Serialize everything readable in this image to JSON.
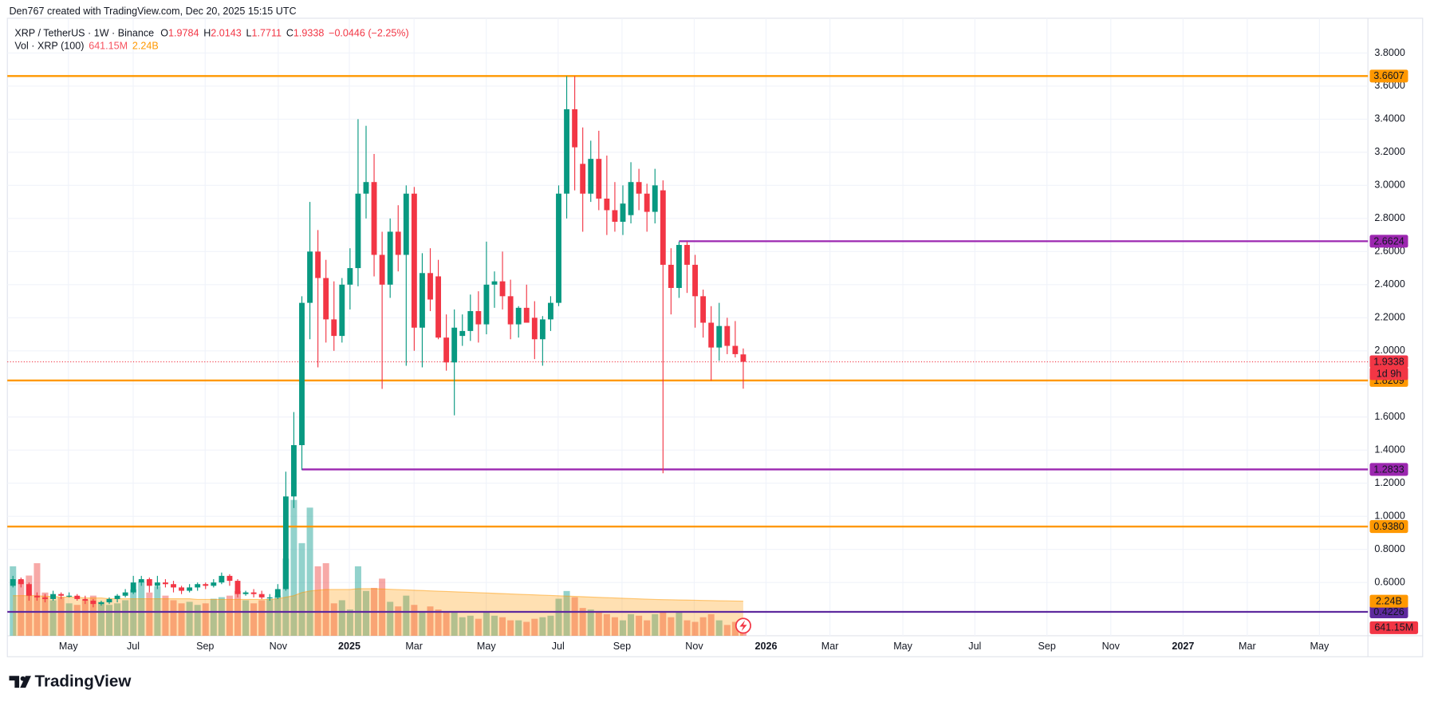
{
  "header": {
    "credit": "Den767 created with TradingView.com, Dec 20, 2025 15:15 UTC"
  },
  "legend": {
    "symbol": "XRP / TetherUS · 1W · Binance",
    "ohlc": [
      {
        "letter": "O",
        "value": 1.9784
      },
      {
        "letter": "H",
        "value": 2.0143
      },
      {
        "letter": "L",
        "value": 1.7711
      },
      {
        "letter": "C",
        "value": 1.9338
      }
    ],
    "change": "−0.0446 (−2.25%)"
  },
  "footer": {
    "brand": "TradingView"
  },
  "chart_data": {
    "type": "candlestick",
    "up_color": "#089981",
    "down_color": "#f23645",
    "grid": true,
    "xlim": [
      -0.7,
      168.84
    ],
    "xticks": [
      {
        "value": 6.91,
        "label": "May"
      },
      {
        "value": 14.98,
        "label": "Jul"
      },
      {
        "value": 23.95,
        "label": "Sep"
      },
      {
        "value": 33.05,
        "label": "Nov"
      },
      {
        "value": 41.91,
        "label": "2025"
      },
      {
        "value": 49.98,
        "label": "Mar"
      },
      {
        "value": 58.98,
        "label": "May"
      },
      {
        "value": 67.93,
        "label": "Jul"
      },
      {
        "value": 75.89,
        "label": "Sep"
      },
      {
        "value": 84.89,
        "label": "Nov"
      },
      {
        "value": 93.84,
        "label": "2026"
      },
      {
        "value": 101.8,
        "label": "Mar"
      },
      {
        "value": 110.89,
        "label": "May"
      },
      {
        "value": 119.86,
        "label": "Jul"
      },
      {
        "value": 128.84,
        "label": "Sep"
      },
      {
        "value": 136.8,
        "label": "Nov"
      },
      {
        "value": 145.8,
        "label": "2027"
      },
      {
        "value": 153.8,
        "label": "Mar"
      },
      {
        "value": 162.8,
        "label": "May"
      }
    ],
    "ylim": [
      0.278,
      4.01
    ],
    "yticks": [
      {
        "value": 0.6,
        "label": "0.6000"
      },
      {
        "value": 0.8,
        "label": "0.8000"
      },
      {
        "value": 1.0,
        "label": "1.0000"
      },
      {
        "value": 1.2,
        "label": "1.2000"
      },
      {
        "value": 1.4,
        "label": "1.4000"
      },
      {
        "value": 1.6,
        "label": "1.6000"
      },
      {
        "value": 1.8,
        "label": "1.8000"
      },
      {
        "value": 2.0,
        "label": "2.0000"
      },
      {
        "value": 2.2,
        "label": "2.2000"
      },
      {
        "value": 2.4,
        "label": "2.4000"
      },
      {
        "value": 2.6,
        "label": "2.6000"
      },
      {
        "value": 2.8,
        "label": "2.8000"
      },
      {
        "value": 3.0,
        "label": "3.0000"
      },
      {
        "value": 3.2,
        "label": "3.2000"
      },
      {
        "value": 3.4,
        "label": "3.4000"
      },
      {
        "value": 3.6,
        "label": "3.6000"
      },
      {
        "value": 3.8,
        "label": "3.8000"
      }
    ],
    "ohlc": [
      [
        0.58,
        0.64,
        0.57,
        0.62
      ],
      [
        0.62,
        0.63,
        0.57,
        0.59
      ],
      [
        0.59,
        0.6,
        0.49,
        0.52
      ],
      [
        0.52,
        0.54,
        0.49,
        0.51
      ],
      [
        0.51,
        0.53,
        0.48,
        0.5
      ],
      [
        0.5,
        0.55,
        0.49,
        0.53
      ],
      [
        0.53,
        0.54,
        0.5,
        0.52
      ],
      [
        0.52,
        0.54,
        0.51,
        0.52
      ],
      [
        0.52,
        0.53,
        0.49,
        0.5
      ],
      [
        0.5,
        0.52,
        0.47,
        0.49
      ],
      [
        0.49,
        0.5,
        0.45,
        0.47
      ],
      [
        0.47,
        0.49,
        0.46,
        0.48
      ],
      [
        0.48,
        0.51,
        0.47,
        0.5
      ],
      [
        0.5,
        0.53,
        0.48,
        0.52
      ],
      [
        0.52,
        0.56,
        0.51,
        0.54
      ],
      [
        0.54,
        0.64,
        0.53,
        0.6
      ],
      [
        0.6,
        0.64,
        0.58,
        0.62
      ],
      [
        0.62,
        0.63,
        0.54,
        0.58
      ],
      [
        0.58,
        0.64,
        0.56,
        0.6
      ],
      [
        0.6,
        0.62,
        0.57,
        0.59
      ],
      [
        0.59,
        0.61,
        0.54,
        0.57
      ],
      [
        0.57,
        0.58,
        0.53,
        0.55
      ],
      [
        0.55,
        0.59,
        0.54,
        0.57
      ],
      [
        0.57,
        0.6,
        0.55,
        0.59
      ],
      [
        0.59,
        0.6,
        0.56,
        0.58
      ],
      [
        0.58,
        0.62,
        0.57,
        0.6
      ],
      [
        0.6,
        0.66,
        0.59,
        0.64
      ],
      [
        0.64,
        0.65,
        0.58,
        0.61
      ],
      [
        0.61,
        0.62,
        0.51,
        0.53
      ],
      [
        0.53,
        0.55,
        0.52,
        0.54
      ],
      [
        0.54,
        0.56,
        0.51,
        0.53
      ],
      [
        0.53,
        0.55,
        0.5,
        0.51
      ],
      [
        0.51,
        0.53,
        0.49,
        0.51
      ],
      [
        0.51,
        0.59,
        0.5,
        0.56
      ],
      [
        0.56,
        1.27,
        0.55,
        1.12
      ],
      [
        1.12,
        1.63,
        1.05,
        1.43
      ],
      [
        1.43,
        2.33,
        1.28,
        2.29
      ],
      [
        2.29,
        2.9,
        2.07,
        2.6
      ],
      [
        2.6,
        2.73,
        1.9,
        2.44
      ],
      [
        2.44,
        2.55,
        2.05,
        2.19
      ],
      [
        2.19,
        2.42,
        2.0,
        2.09
      ],
      [
        2.09,
        2.44,
        2.05,
        2.4
      ],
      [
        2.4,
        2.62,
        2.25,
        2.5
      ],
      [
        2.5,
        3.4,
        2.39,
        2.95
      ],
      [
        2.95,
        3.36,
        2.8,
        3.02
      ],
      [
        3.02,
        3.19,
        2.45,
        2.58
      ],
      [
        2.58,
        2.72,
        1.77,
        2.4
      ],
      [
        2.4,
        2.8,
        2.32,
        2.72
      ],
      [
        2.72,
        2.88,
        2.48,
        2.58
      ],
      [
        2.58,
        3.0,
        1.91,
        2.95
      ],
      [
        2.95,
        2.99,
        2.0,
        2.14
      ],
      [
        2.14,
        2.59,
        1.9,
        2.47
      ],
      [
        2.47,
        2.62,
        2.24,
        2.31
      ],
      [
        2.45,
        2.55,
        2.07,
        2.08
      ],
      [
        2.08,
        2.22,
        1.88,
        1.93
      ],
      [
        1.93,
        2.25,
        1.61,
        2.14
      ],
      [
        2.09,
        2.22,
        2.03,
        2.12
      ],
      [
        2.12,
        2.34,
        2.06,
        2.24
      ],
      [
        2.24,
        2.36,
        2.05,
        2.16
      ],
      [
        2.16,
        2.66,
        2.1,
        2.4
      ],
      [
        2.4,
        2.48,
        2.26,
        2.42
      ],
      [
        2.42,
        2.6,
        2.25,
        2.33
      ],
      [
        2.33,
        2.43,
        2.07,
        2.16
      ],
      [
        2.16,
        2.27,
        2.08,
        2.26
      ],
      [
        2.26,
        2.4,
        2.17,
        2.17
      ],
      [
        2.2,
        2.3,
        1.95,
        2.07
      ],
      [
        2.07,
        2.21,
        1.91,
        2.19
      ],
      [
        2.19,
        2.33,
        2.12,
        2.29
      ],
      [
        2.29,
        3.0,
        2.27,
        2.95
      ],
      [
        2.95,
        3.66,
        2.8,
        3.46
      ],
      [
        3.46,
        3.66,
        2.97,
        3.23
      ],
      [
        3.13,
        3.35,
        2.72,
        2.95
      ],
      [
        2.95,
        3.27,
        2.9,
        3.16
      ],
      [
        3.16,
        3.33,
        2.85,
        2.92
      ],
      [
        2.92,
        3.18,
        2.7,
        2.85
      ],
      [
        2.85,
        3.02,
        2.72,
        2.78
      ],
      [
        2.78,
        3.0,
        2.7,
        2.89
      ],
      [
        2.82,
        3.14,
        2.77,
        3.02
      ],
      [
        3.02,
        3.1,
        2.85,
        2.95
      ],
      [
        2.95,
        3.01,
        2.72,
        2.84
      ],
      [
        2.84,
        3.1,
        2.77,
        3.0
      ],
      [
        2.97,
        3.03,
        1.26,
        2.52
      ],
      [
        2.52,
        2.62,
        2.22,
        2.38
      ],
      [
        2.38,
        2.66,
        2.32,
        2.64
      ],
      [
        2.64,
        2.66,
        2.35,
        2.52
      ],
      [
        2.52,
        2.58,
        2.14,
        2.33
      ],
      [
        2.33,
        2.37,
        2.08,
        2.17
      ],
      [
        2.17,
        2.27,
        1.82,
        2.02
      ],
      [
        2.02,
        2.29,
        1.94,
        2.15
      ],
      [
        2.15,
        2.2,
        1.98,
        2.03
      ],
      [
        2.03,
        2.18,
        1.96,
        1.98
      ],
      [
        1.9784,
        2.0143,
        1.7711,
        1.9338
      ]
    ],
    "volume": {
      "label": "Vol · XRP (100)",
      "ylim": [
        0,
        40000
      ],
      "up_color": "rgba(38,166,154,0.5)",
      "down_color": "rgba(239,83,80,0.5)",
      "values": [
        4500,
        3600,
        3900,
        4700,
        2800,
        2300,
        2500,
        2100,
        2000,
        2300,
        2600,
        2200,
        2000,
        2100,
        2300,
        3000,
        3500,
        2800,
        3200,
        2600,
        2300,
        2100,
        2200,
        2000,
        2100,
        2400,
        2500,
        2600,
        2900,
        2300,
        2100,
        2300,
        2400,
        2600,
        5000,
        8800,
        6000,
        8300,
        4500,
        4700,
        2100,
        2300,
        1700,
        4500,
        2900,
        3100,
        3700,
        2200,
        1900,
        2600,
        2000,
        1600,
        1900,
        1700,
        1500,
        1600,
        1200,
        1300,
        1100,
        1500,
        1300,
        1200,
        1000,
        1000,
        900,
        1100,
        1200,
        1300,
        2400,
        2900,
        2500,
        1800,
        1700,
        1500,
        1400,
        1200,
        1000,
        1400,
        1300,
        1000,
        1400,
        1600,
        1200,
        1500,
        1000,
        900,
        1200,
        1400,
        1000,
        700,
        900,
        641.15
      ],
      "last_label": "641.15M",
      "last_color": "#f23645",
      "ma": {
        "color": "#ff9800",
        "last_label": "2.24B",
        "values": [
          2600,
          2600,
          2600,
          2600,
          2550,
          2550,
          2500,
          2500,
          2500,
          2450,
          2450,
          2450,
          2400,
          2400,
          2400,
          2400,
          2400,
          2400,
          2400,
          2400,
          2400,
          2400,
          2400,
          2350,
          2350,
          2350,
          2350,
          2350,
          2350,
          2350,
          2350,
          2350,
          2350,
          2400,
          2500,
          2600,
          2800,
          2900,
          2950,
          3000,
          3000,
          3000,
          3000,
          3050,
          3050,
          3050,
          3030,
          3010,
          2990,
          2970,
          2950,
          2930,
          2910,
          2890,
          2870,
          2850,
          2830,
          2810,
          2790,
          2770,
          2750,
          2730,
          2710,
          2690,
          2670,
          2650,
          2630,
          2610,
          2590,
          2570,
          2550,
          2530,
          2510,
          2490,
          2470,
          2450,
          2430,
          2410,
          2390,
          2370,
          2350,
          2340,
          2330,
          2320,
          2310,
          2300,
          2290,
          2280,
          2270,
          2260,
          2250,
          2240
        ]
      }
    },
    "levels": [
      {
        "value": 3.6607,
        "label": "3.6607",
        "color": "#ff9800",
        "text_color": "#131722"
      },
      {
        "value": 2.6624,
        "label": "2.6624",
        "color": "#9c27b0",
        "text_color": "#ffffff",
        "x_start": 83
      },
      {
        "value": 1.8209,
        "label": "1.8209",
        "color": "#ff9800",
        "text_color": "#131722"
      },
      {
        "value": 1.2833,
        "label": "1.2833",
        "color": "#9c27b0",
        "text_color": "#ffffff",
        "x_start": 36
      },
      {
        "value": 0.938,
        "label": "0.9380",
        "color": "#ff9800",
        "text_color": "#131722"
      },
      {
        "value": 0.4226,
        "label": "0.4226",
        "color": "#5e2a9e",
        "text_color": "#ffffff"
      }
    ],
    "current": {
      "value": 1.9338,
      "countdown": "1d 9h",
      "color": "#f23645"
    }
  }
}
